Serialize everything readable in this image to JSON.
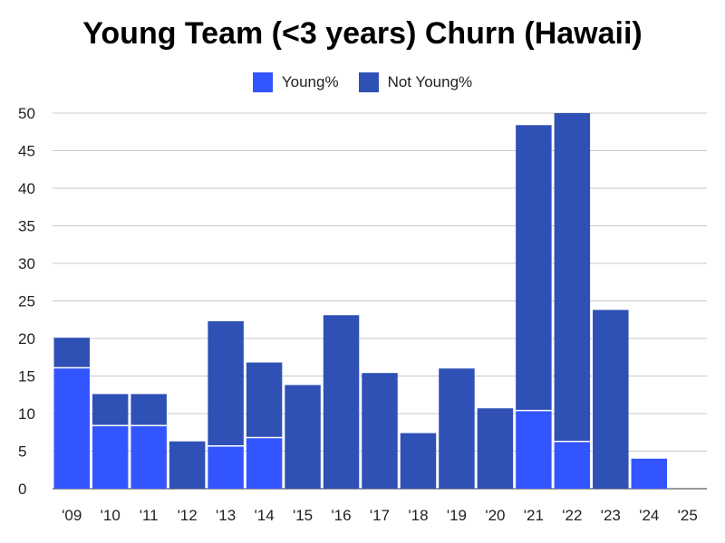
{
  "chart_data": {
    "type": "bar",
    "stacked": true,
    "title": "Young Team (<3 years) Churn (Hawaii)",
    "xlabel": "",
    "ylabel": "",
    "ylim": [
      0,
      50
    ],
    "yticks": [
      0,
      5,
      10,
      15,
      20,
      25,
      30,
      35,
      40,
      45,
      50
    ],
    "grid": true,
    "legend_position": "top-center",
    "categories": [
      "'09",
      "'10",
      "'11",
      "'12",
      "'13",
      "'14",
      "'15",
      "'16",
      "'17",
      "'18",
      "'19",
      "'20",
      "'21",
      "'22",
      "'23",
      "'24",
      "'25"
    ],
    "series": [
      {
        "name": "Young%",
        "color": "#3355ff",
        "values": [
          16.1,
          8.4,
          8.4,
          0,
          5.7,
          6.8,
          0,
          0,
          0,
          0,
          0,
          0,
          10.4,
          6.3,
          0,
          4.0,
          0
        ]
      },
      {
        "name": "Not Young%",
        "color": "#2f50b5",
        "values": [
          4.0,
          4.2,
          4.2,
          6.3,
          16.6,
          10.0,
          13.8,
          23.1,
          15.4,
          7.4,
          16.0,
          10.7,
          38.0,
          43.7,
          23.8,
          0,
          0
        ]
      }
    ]
  }
}
